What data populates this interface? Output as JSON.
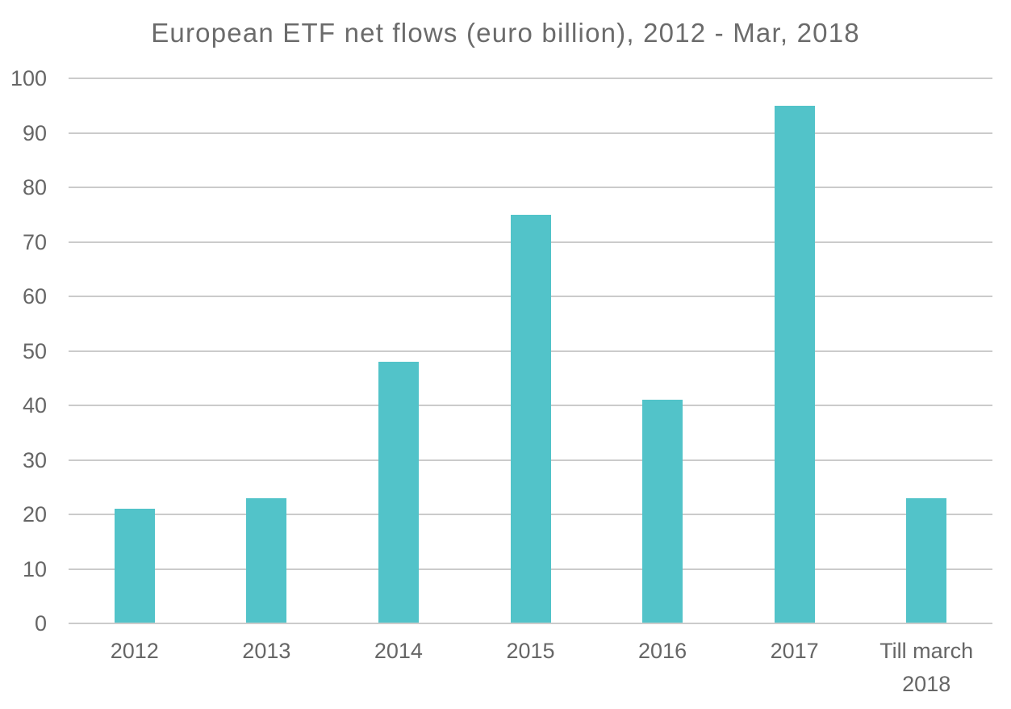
{
  "chart_data": {
    "type": "bar",
    "title": "European ETF net flows (euro billion), 2012 - Mar, 2018",
    "categories": [
      "2012",
      "2013",
      "2014",
      "2015",
      "2016",
      "2017",
      "Till march\n2018"
    ],
    "values": [
      21,
      23,
      48,
      75,
      41,
      95,
      23
    ],
    "xlabel": "",
    "ylabel": "",
    "ylim": [
      0,
      100
    ],
    "ytick_interval": 10,
    "ytick_labels": [
      "0",
      "10",
      "20",
      "30",
      "40",
      "50",
      "60",
      "70",
      "80",
      "90",
      "100"
    ],
    "grid": "horizontal",
    "legend_position": "none",
    "colors": {
      "bar": "#52c3c9",
      "gridline": "#cbcbcb",
      "tick_label": "#666666",
      "title": "#6b6b6b",
      "background": "#ffffff"
    }
  }
}
